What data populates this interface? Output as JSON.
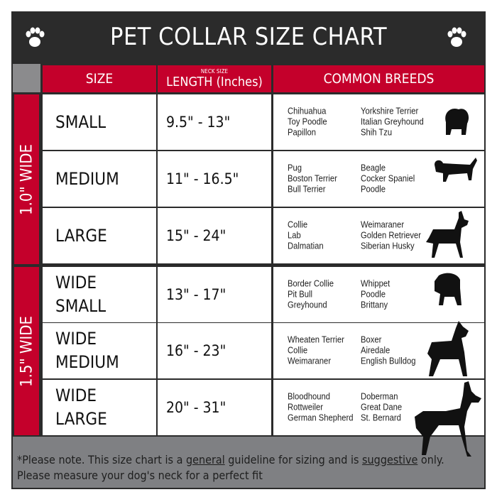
{
  "title": "PET COLLAR SIZE CHART",
  "colors": {
    "accent": "#c4002b",
    "frame": "#2b2b2b",
    "footer": "#7f8083"
  },
  "icons": {
    "header": "paw-print-icon",
    "rows": "dog-silhouette-icon"
  },
  "headers": {
    "size": "SIZE",
    "length_small": "NECK SIZE",
    "length": "LENGTH (Inches)",
    "breeds": "COMMON BREEDS"
  },
  "groups": [
    {
      "label": "1.0\" WIDE"
    },
    {
      "label": "1.5\" WIDE"
    }
  ],
  "rows": [
    {
      "size": [
        "SMALL"
      ],
      "length": "9.5\" - 13\"",
      "breeds_a": [
        "Chihuahua",
        "Toy Poodle",
        "Papillon"
      ],
      "breeds_b": [
        "Yorkshire Terrier",
        "Italian Greyhound",
        "Shih Tzu"
      ]
    },
    {
      "size": [
        "MEDIUM"
      ],
      "length": "11\" - 16.5\"",
      "breeds_a": [
        "Pug",
        "Boston Terrier",
        "Bull Terrier"
      ],
      "breeds_b": [
        "Beagle",
        "Cocker Spaniel",
        "Poodle"
      ]
    },
    {
      "size": [
        "LARGE"
      ],
      "length": "15\" - 24\"",
      "breeds_a": [
        "Collie",
        "Lab",
        "Dalmatian"
      ],
      "breeds_b": [
        "Weimaraner",
        "Golden Retriever",
        "Siberian Husky"
      ]
    },
    {
      "size": [
        "WIDE",
        "SMALL"
      ],
      "length": "13\" - 17\"",
      "breeds_a": [
        "Border Collie",
        "Pit Bull",
        "Greyhound"
      ],
      "breeds_b": [
        "Whippet",
        "Poodle",
        "Brittany"
      ]
    },
    {
      "size": [
        "WIDE",
        "MEDIUM"
      ],
      "length": "16\" - 23\"",
      "breeds_a": [
        "Wheaten Terrier",
        "Collie",
        "Weimaraner"
      ],
      "breeds_b": [
        "Boxer",
        "Airedale",
        "English Bulldog"
      ]
    },
    {
      "size": [
        "WIDE",
        "LARGE"
      ],
      "length": "20\" - 31\"",
      "breeds_a": [
        "Bloodhound",
        "Rottweiler",
        "German Shepherd"
      ],
      "breeds_b": [
        "Doberman",
        "Great Dane",
        "St. Bernard"
      ]
    }
  ],
  "footer": {
    "p1": "*Please note. This size chart is a ",
    "u1": "general",
    "p2": " guideline for sizing and is ",
    "u2": "suggestive",
    "p3": " only.",
    "line2": "Please measure your dog's neck for a perfect fit"
  }
}
